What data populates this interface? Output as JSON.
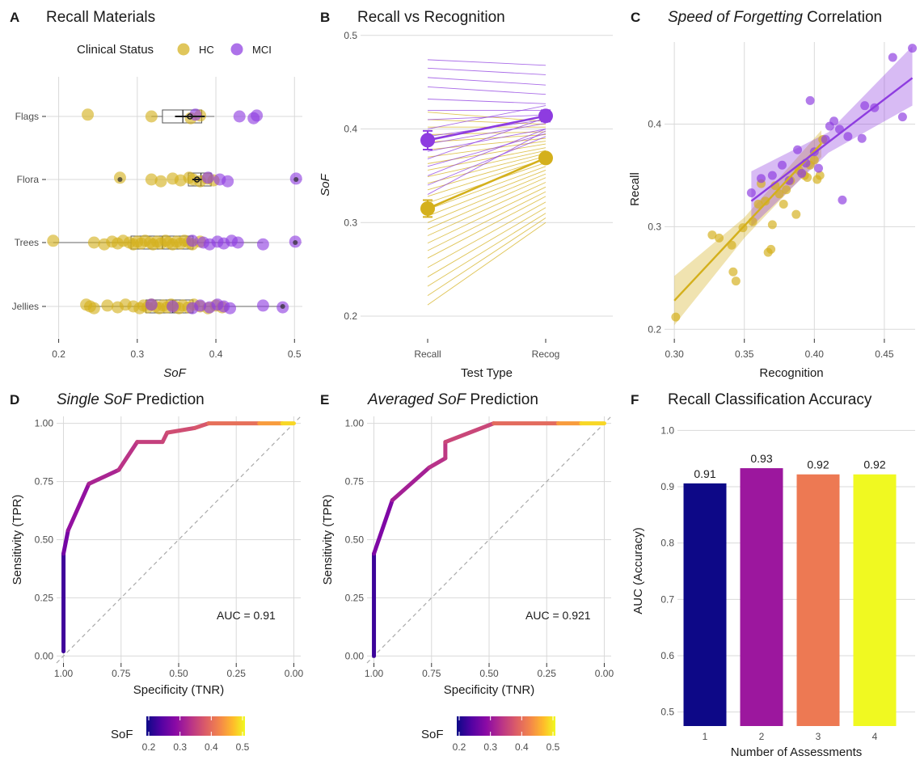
{
  "colors": {
    "HC": "#D4B01C",
    "MCI": "#8E3CE0",
    "text": "#1a1a1a",
    "grid": "#d9d9d9"
  },
  "panels": {
    "A": {
      "letter": "A",
      "title": "Recall Materials"
    },
    "B": {
      "letter": "B",
      "title": "Recall vs Recognition"
    },
    "C": {
      "letter": "C",
      "title_italic": "Speed of Forgetting",
      "title_rest": " Correlation"
    },
    "D": {
      "letter": "D",
      "title_italic": "Single SoF",
      "title_rest": " Prediction"
    },
    "E": {
      "letter": "E",
      "title_italic": "Averaged SoF",
      "title_rest": " Prediction"
    },
    "F": {
      "letter": "F",
      "title": "Recall Classification Accuracy"
    }
  },
  "legend": {
    "title": "Clinical Status",
    "items": [
      "HC",
      "MCI"
    ]
  },
  "colorbar": {
    "title": "SoF",
    "ticks": [
      "0.2",
      "0.3",
      "0.4",
      "0.5"
    ],
    "range": [
      0.2,
      0.5
    ]
  },
  "auc_labels": {
    "D": "AUC =  0.91",
    "E": "AUC =  0.921"
  },
  "chart_data": [
    {
      "panel": "A",
      "type": "scatter",
      "subtype": "strip + boxplot",
      "title": "Recall Materials",
      "xlabel": "SoF",
      "ylabel": "",
      "xlim": [
        0.185,
        0.51
      ],
      "xticks": [
        0.2,
        0.3,
        0.4,
        0.5
      ],
      "categories": [
        "Flags",
        "Flora",
        "Trees",
        "Jellies"
      ],
      "boxes": [
        {
          "category": "Flags",
          "q1": 0.332,
          "median": 0.358,
          "q3": 0.382,
          "whisker_low": 0.318,
          "whisker_high": 0.398
        },
        {
          "category": "Flora",
          "q1": 0.365,
          "median": 0.381,
          "q3": 0.394,
          "whisker_low": 0.365,
          "whisker_high": 0.394
        },
        {
          "category": "Trees",
          "q1": 0.292,
          "median": 0.332,
          "q3": 0.371,
          "whisker_low": 0.193,
          "whisker_high": 0.46
        },
        {
          "category": "Jellies",
          "q1": 0.311,
          "median": 0.345,
          "q3": 0.371,
          "whisker_low": 0.232,
          "whisker_high": 0.485
        }
      ],
      "mean_bars": [
        {
          "category": "Flags",
          "mean": 0.367,
          "low": 0.348,
          "high": 0.386
        },
        {
          "category": "Flora",
          "mean": 0.376,
          "low": 0.37,
          "high": 0.382
        }
      ],
      "series": [
        {
          "name": "HC",
          "points": [
            {
              "category": "Flags",
              "values": [
                0.237,
                0.318,
                0.368,
                0.38
              ]
            },
            {
              "category": "Flora",
              "values": [
                0.278,
                0.318,
                0.33,
                0.345,
                0.355,
                0.366,
                0.371,
                0.38,
                0.389,
                0.397
              ]
            },
            {
              "category": "Trees",
              "values": [
                0.193,
                0.245,
                0.258,
                0.268,
                0.275,
                0.282,
                0.29,
                0.295,
                0.3,
                0.305,
                0.31,
                0.316,
                0.32,
                0.325,
                0.33,
                0.336,
                0.34,
                0.345,
                0.35,
                0.355,
                0.36,
                0.365,
                0.37,
                0.38
              ]
            },
            {
              "category": "Jellies",
              "values": [
                0.235,
                0.24,
                0.245,
                0.262,
                0.275,
                0.285,
                0.295,
                0.303,
                0.308,
                0.313,
                0.318,
                0.323,
                0.328,
                0.333,
                0.338,
                0.343,
                0.348,
                0.353,
                0.358,
                0.365,
                0.372,
                0.38,
                0.39,
                0.4,
                0.408
              ]
            }
          ]
        },
        {
          "name": "MCI",
          "points": [
            {
              "category": "Flags",
              "values": [
                0.374,
                0.43,
                0.448,
                0.452
              ]
            },
            {
              "category": "Flora",
              "values": [
                0.39,
                0.405,
                0.415,
                0.502
              ]
            },
            {
              "category": "Trees",
              "values": [
                0.37,
                0.384,
                0.392,
                0.402,
                0.41,
                0.42,
                0.428,
                0.46,
                0.501
              ]
            },
            {
              "category": "Jellies",
              "values": [
                0.318,
                0.345,
                0.37,
                0.38,
                0.392,
                0.402,
                0.41,
                0.418,
                0.46,
                0.485
              ]
            }
          ]
        }
      ],
      "legend": "top"
    },
    {
      "panel": "B",
      "type": "line",
      "subtype": "paired slope plot",
      "title": "Recall vs Recognition",
      "xlabel": "Test Type",
      "ylabel": "SoF",
      "categories": [
        "Recall",
        "Recog"
      ],
      "ylim": [
        0.175,
        0.505
      ],
      "yticks": [
        0.2,
        0.3,
        0.4,
        0.5
      ],
      "summary": [
        {
          "name": "HC",
          "recall": 0.315,
          "recall_err": 0.009,
          "recog": 0.369,
          "recog_err": 0.005
        },
        {
          "name": "MCI",
          "recall": 0.388,
          "recall_err": 0.01,
          "recog": 0.414,
          "recog_err": 0.006
        }
      ],
      "series": [
        {
          "name": "HC",
          "pairs": [
            [
              0.212,
              0.3
            ],
            [
              0.222,
              0.305
            ],
            [
              0.232,
              0.31
            ],
            [
              0.242,
              0.316
            ],
            [
              0.252,
              0.322
            ],
            [
              0.262,
              0.328
            ],
            [
              0.27,
              0.333
            ],
            [
              0.278,
              0.338
            ],
            [
              0.286,
              0.343
            ],
            [
              0.293,
              0.348
            ],
            [
              0.3,
              0.352
            ],
            [
              0.307,
              0.356
            ],
            [
              0.314,
              0.36
            ],
            [
              0.321,
              0.364
            ],
            [
              0.328,
              0.368
            ],
            [
              0.335,
              0.371
            ],
            [
              0.342,
              0.374
            ],
            [
              0.349,
              0.377
            ],
            [
              0.356,
              0.38
            ],
            [
              0.363,
              0.384
            ],
            [
              0.37,
              0.387
            ],
            [
              0.378,
              0.39
            ],
            [
              0.386,
              0.394
            ],
            [
              0.394,
              0.397
            ],
            [
              0.402,
              0.402
            ],
            [
              0.41,
              0.405
            ],
            [
              0.418,
              0.408
            ]
          ]
        },
        {
          "name": "MCI",
          "pairs": [
            [
              0.474,
              0.468
            ],
            [
              0.465,
              0.458
            ],
            [
              0.455,
              0.447
            ],
            [
              0.445,
              0.437
            ],
            [
              0.432,
              0.427
            ],
            [
              0.42,
              0.42
            ],
            [
              0.41,
              0.415
            ],
            [
              0.4,
              0.425
            ],
            [
              0.392,
              0.41
            ],
            [
              0.384,
              0.406
            ],
            [
              0.376,
              0.4
            ],
            [
              0.368,
              0.412
            ],
            [
              0.36,
              0.395
            ],
            [
              0.35,
              0.4
            ],
            [
              0.34,
              0.392
            ],
            [
              0.33,
              0.398
            ]
          ]
        }
      ]
    },
    {
      "panel": "C",
      "type": "scatter",
      "subtype": "scatter with linear fits",
      "title": "Speed of Forgetting Correlation",
      "xlabel": "Recognition",
      "ylabel": "Recall",
      "xlim": [
        0.293,
        0.472
      ],
      "ylim": [
        0.19,
        0.48
      ],
      "xticks": [
        0.3,
        0.35,
        0.4,
        0.45
      ],
      "yticks": [
        0.2,
        0.3,
        0.4
      ],
      "series": [
        {
          "name": "HC",
          "points": [
            [
              0.301,
              0.212
            ],
            [
              0.327,
              0.292
            ],
            [
              0.332,
              0.289
            ],
            [
              0.341,
              0.282
            ],
            [
              0.342,
              0.256
            ],
            [
              0.344,
              0.247
            ],
            [
              0.349,
              0.299
            ],
            [
              0.356,
              0.305
            ],
            [
              0.36,
              0.322
            ],
            [
              0.362,
              0.342
            ],
            [
              0.365,
              0.325
            ],
            [
              0.367,
              0.275
            ],
            [
              0.369,
              0.278
            ],
            [
              0.37,
              0.302
            ],
            [
              0.372,
              0.34
            ],
            [
              0.375,
              0.332
            ],
            [
              0.378,
              0.322
            ],
            [
              0.38,
              0.336
            ],
            [
              0.383,
              0.345
            ],
            [
              0.387,
              0.312
            ],
            [
              0.389,
              0.355
            ],
            [
              0.393,
              0.35
            ],
            [
              0.395,
              0.348
            ],
            [
              0.397,
              0.36
            ],
            [
              0.4,
              0.365
            ],
            [
              0.402,
              0.346
            ],
            [
              0.404,
              0.35
            ],
            [
              0.406,
              0.385
            ]
          ],
          "fit": {
            "x": [
              0.3,
              0.405
            ],
            "y": [
              0.228,
              0.381
            ]
          },
          "ci": {
            "x": [
              0.3,
              0.35,
              0.405
            ],
            "lower": [
              0.204,
              0.289,
              0.368
            ],
            "upper": [
              0.252,
              0.309,
              0.394
            ]
          }
        },
        {
          "name": "MCI",
          "points": [
            [
              0.355,
              0.333
            ],
            [
              0.362,
              0.347
            ],
            [
              0.37,
              0.35
            ],
            [
              0.377,
              0.36
            ],
            [
              0.382,
              0.345
            ],
            [
              0.388,
              0.375
            ],
            [
              0.391,
              0.352
            ],
            [
              0.394,
              0.362
            ],
            [
              0.397,
              0.423
            ],
            [
              0.4,
              0.373
            ],
            [
              0.403,
              0.357
            ],
            [
              0.408,
              0.385
            ],
            [
              0.411,
              0.398
            ],
            [
              0.414,
              0.403
            ],
            [
              0.418,
              0.395
            ],
            [
              0.42,
              0.326
            ],
            [
              0.424,
              0.388
            ],
            [
              0.434,
              0.386
            ],
            [
              0.436,
              0.418
            ],
            [
              0.443,
              0.416
            ],
            [
              0.456,
              0.465
            ],
            [
              0.463,
              0.407
            ],
            [
              0.47,
              0.474
            ]
          ],
          "fit": {
            "x": [
              0.355,
              0.47
            ],
            "y": [
              0.325,
              0.445
            ]
          },
          "ci": {
            "x": [
              0.355,
              0.41,
              0.47
            ],
            "lower": [
              0.3,
              0.372,
              0.418
            ],
            "upper": [
              0.354,
              0.392,
              0.476
            ]
          }
        }
      ]
    },
    {
      "panel": "D",
      "type": "line",
      "subtype": "ROC curve",
      "title": "Single SoF Prediction",
      "xlabel": "Specificity (TNR)",
      "ylabel": "Sensitivity (TPR)",
      "x_reversed": true,
      "xlim": [
        1.03,
        -0.03
      ],
      "ylim": [
        -0.03,
        1.03
      ],
      "xticks": [
        "1.00",
        "0.75",
        "0.50",
        "0.25",
        "0.00"
      ],
      "yticks": [
        "0.00",
        "0.25",
        "0.50",
        "0.75",
        "1.00"
      ],
      "auc": 0.91,
      "color_by": "SoF threshold",
      "points": [
        [
          1.0,
          0.02,
          0.205
        ],
        [
          1.0,
          0.44,
          0.26
        ],
        [
          0.98,
          0.54,
          0.285
        ],
        [
          0.89,
          0.74,
          0.31
        ],
        [
          0.76,
          0.8,
          0.33
        ],
        [
          0.68,
          0.92,
          0.345
        ],
        [
          0.57,
          0.92,
          0.355
        ],
        [
          0.55,
          0.96,
          0.36
        ],
        [
          0.43,
          0.98,
          0.37
        ],
        [
          0.37,
          1.0,
          0.38
        ],
        [
          0.15,
          1.0,
          0.42
        ],
        [
          0.05,
          1.0,
          0.46
        ],
        [
          0.0,
          1.0,
          0.5
        ]
      ]
    },
    {
      "panel": "E",
      "type": "line",
      "subtype": "ROC curve",
      "title": "Averaged SoF Prediction",
      "xlabel": "Specificity (TNR)",
      "ylabel": "Sensitivity (TPR)",
      "x_reversed": true,
      "xlim": [
        1.03,
        -0.03
      ],
      "ylim": [
        -0.03,
        1.03
      ],
      "xticks": [
        "1.00",
        "0.75",
        "0.50",
        "0.25",
        "0.00"
      ],
      "yticks": [
        "0.00",
        "0.25",
        "0.50",
        "0.75",
        "1.00"
      ],
      "auc": 0.921,
      "color_by": "SoF threshold",
      "points": [
        [
          1.0,
          0.0,
          0.2
        ],
        [
          1.0,
          0.44,
          0.26
        ],
        [
          0.92,
          0.67,
          0.3
        ],
        [
          0.76,
          0.81,
          0.33
        ],
        [
          0.69,
          0.85,
          0.34
        ],
        [
          0.69,
          0.92,
          0.345
        ],
        [
          0.48,
          1.0,
          0.37
        ],
        [
          0.2,
          1.0,
          0.42
        ],
        [
          0.1,
          1.0,
          0.46
        ],
        [
          0.0,
          1.0,
          0.5
        ]
      ]
    },
    {
      "panel": "F",
      "type": "bar",
      "title": "Recall Classification Accuracy",
      "xlabel": "Number of Assessments",
      "ylabel": "AUC (Accuracy)",
      "categories": [
        "1",
        "2",
        "3",
        "4"
      ],
      "values": [
        0.906,
        0.933,
        0.922,
        0.922
      ],
      "value_labels": [
        "0.91",
        "0.93",
        "0.92",
        "0.92"
      ],
      "bar_colors": [
        "#0D0887",
        "#9C179E",
        "#ED7953",
        "#F0F921"
      ],
      "ylim": [
        0.475,
        1.025
      ],
      "yticks": [
        "0.5",
        "0.6",
        "0.7",
        "0.8",
        "0.9",
        "1.0"
      ]
    }
  ]
}
